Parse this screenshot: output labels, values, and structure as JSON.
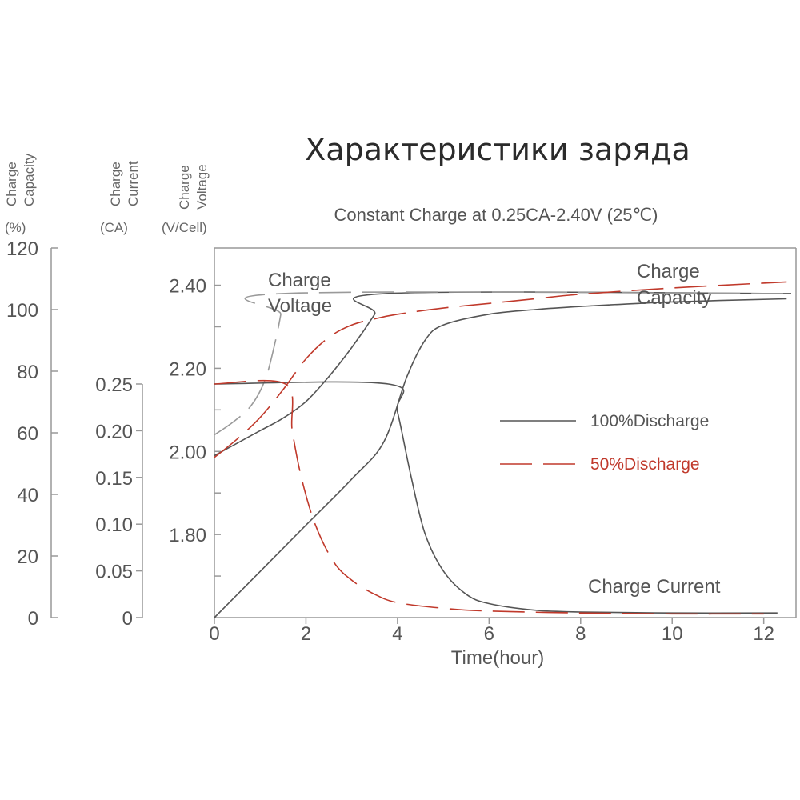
{
  "chart_data": {
    "type": "line",
    "title": "Характеристики заряда",
    "subtitle": "Constant Charge at 0.25CA-2.40V  (25℃)",
    "xlabel": "Time(hour)",
    "x_ticks": [
      "0",
      "2",
      "4",
      "6",
      "8",
      "10",
      "12"
    ],
    "xlim": [
      0,
      12.6
    ],
    "axes": {
      "capacity": {
        "label_line1": "Charge",
        "label_line2": "Capacity",
        "unit": "(%)",
        "ticks": [
          "0",
          "20",
          "40",
          "60",
          "80",
          "100",
          "120"
        ],
        "ylim": [
          0,
          120
        ]
      },
      "current": {
        "label_line1": "Charge",
        "label_line2": "Current",
        "unit": "(CA)",
        "ticks": [
          "0",
          "0.05",
          "0.10",
          "0.15",
          "0.20",
          "0.25"
        ],
        "ylim": [
          0,
          0.25
        ]
      },
      "voltage": {
        "label_line1": "Charge",
        "label_line2": "Voltage",
        "unit": "(V/Cell)",
        "ticks": [
          "1.80",
          "2.00",
          "2.20",
          "2.40"
        ],
        "ylim": [
          1.6,
          2.48
        ]
      }
    },
    "annotations": {
      "voltage_line1": "Charge",
      "voltage_line2": "Voltage",
      "capacity_line1": "Charge",
      "capacity_line2": "Capacity",
      "current": "Charge Current"
    },
    "legend": {
      "position": "right-middle",
      "entries": [
        {
          "label": "100%Discharge",
          "color": "#555555",
          "style": "solid"
        },
        {
          "label": "50%Discharge",
          "color": "#c0392b",
          "style": "dashed"
        }
      ]
    },
    "colors": {
      "solid": "#555555",
      "dashed": "#c0392b",
      "dashed_gray": "#9a9a9a"
    },
    "series": [
      {
        "quantity": "voltage",
        "discharge": "100%",
        "axis": "voltage",
        "x": [
          0,
          0.5,
          1,
          1.5,
          2,
          2.5,
          3,
          3.5,
          3.75,
          12.6
        ],
        "y": [
          1.99,
          2.02,
          2.05,
          2.08,
          2.12,
          2.18,
          2.25,
          2.33,
          2.38,
          2.38
        ]
      },
      {
        "quantity": "voltage",
        "discharge": "50%",
        "axis": "voltage",
        "x": [
          0,
          0.4,
          0.8,
          1.1,
          1.3,
          1.45,
          1.5,
          12.6
        ],
        "y": [
          2.04,
          2.07,
          2.11,
          2.17,
          2.25,
          2.33,
          2.38,
          2.38
        ]
      },
      {
        "quantity": "current",
        "discharge": "100%",
        "axis": "current",
        "x": [
          0,
          3.8,
          4.0,
          4.3,
          4.6,
          5.0,
          5.5,
          6,
          7,
          8,
          10,
          12.3
        ],
        "y": [
          0.25,
          0.25,
          0.22,
          0.15,
          0.09,
          0.05,
          0.025,
          0.015,
          0.008,
          0.006,
          0.005,
          0.005
        ]
      },
      {
        "quantity": "current",
        "discharge": "50%",
        "axis": "current",
        "x": [
          0,
          1.55,
          1.7,
          1.9,
          2.2,
          2.6,
          3,
          3.5,
          4,
          5,
          6,
          8,
          10,
          12
        ],
        "y": [
          0.25,
          0.25,
          0.2,
          0.15,
          0.1,
          0.06,
          0.04,
          0.025,
          0.016,
          0.01,
          0.007,
          0.005,
          0.004,
          0.004
        ]
      },
      {
        "quantity": "capacity",
        "discharge": "100%",
        "axis": "capacity",
        "x": [
          0,
          1,
          2,
          3,
          3.7,
          4.2,
          4.6,
          5,
          6,
          7,
          8,
          10,
          12.5
        ],
        "y": [
          0,
          15,
          30,
          45,
          57,
          78,
          90,
          95,
          98.5,
          100,
          101,
          102.5,
          103.5
        ]
      },
      {
        "quantity": "capacity",
        "discharge": "50%",
        "axis": "capacity",
        "x": [
          0,
          0.5,
          1,
          1.5,
          2,
          2.5,
          3,
          3.5,
          4,
          5,
          6,
          7,
          8,
          10,
          12.5
        ],
        "y": [
          52,
          58,
          65,
          74,
          84,
          91,
          95,
          97,
          98.5,
          100.5,
          102,
          103.5,
          105,
          107,
          109
        ]
      }
    ]
  }
}
